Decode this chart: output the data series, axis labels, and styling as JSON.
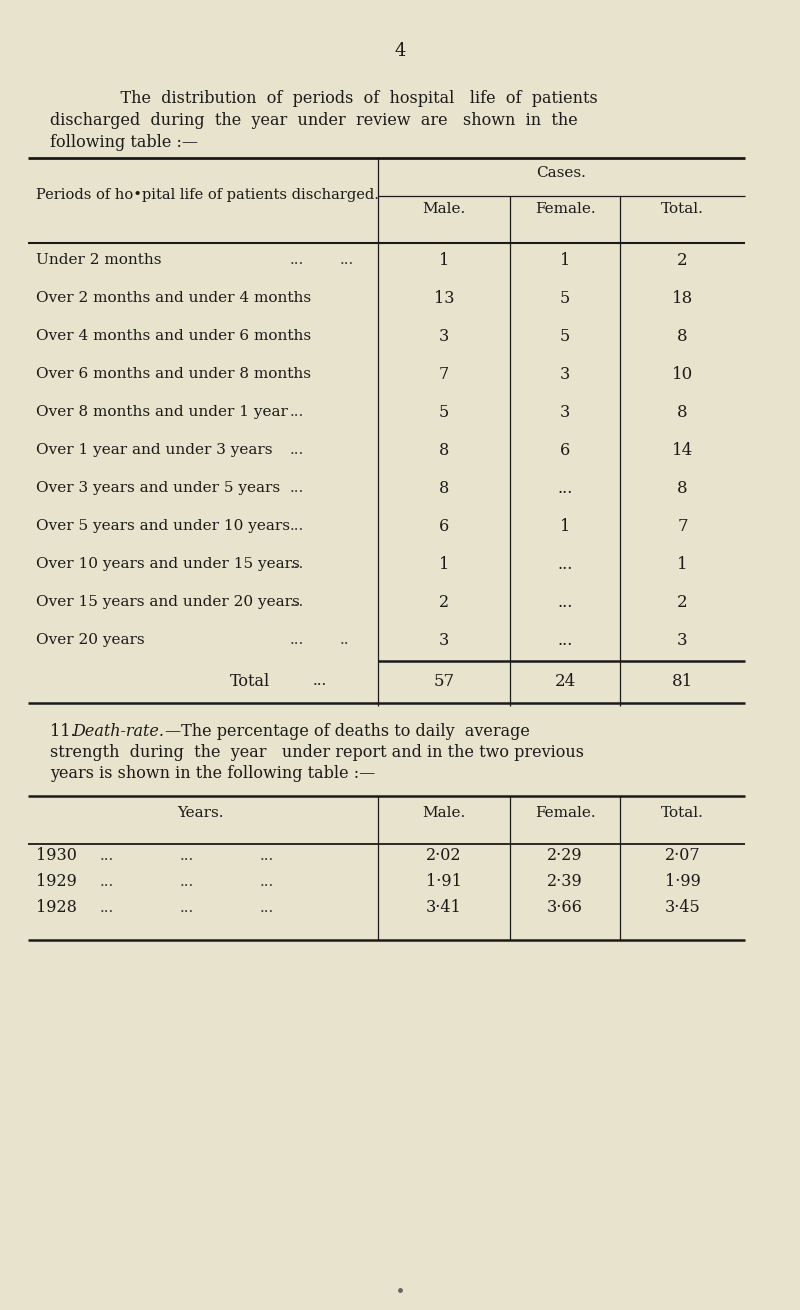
{
  "bg_color": "#e8e3cc",
  "page_number": "4",
  "intro_line1": "    The  distribution  of  periods  of  hospital   life  of  patients",
  "intro_line2": "discharged  during  the  year  under  review  are   shown  in  the",
  "intro_line3": "following table :—",
  "table1_header_left": "Periods of ho•pital life of patients discharged.",
  "table1_header_cases": "Cases.",
  "table1_col_headers": [
    "Male.",
    "Female.",
    "Total."
  ],
  "table1_rows": [
    [
      "Under 2 months",
      "...",
      "...",
      "1",
      "1",
      "2"
    ],
    [
      "Over 2 months and under 4 months",
      "...",
      "",
      "13",
      "5",
      "18"
    ],
    [
      "Over 4 months and under 6 months",
      "...",
      "",
      "3",
      "5",
      "8"
    ],
    [
      "Over 6 months and under 8 months",
      "...",
      "",
      "7",
      "3",
      "10"
    ],
    [
      "Over 8 months and under 1 year",
      "...",
      "",
      "5",
      "3",
      "8"
    ],
    [
      "Over 1 year and under 3 years",
      "...",
      "",
      "8",
      "6",
      "14"
    ],
    [
      "Over 3 years and under 5 years",
      "...",
      "",
      "8",
      "...",
      "8"
    ],
    [
      "Over 5 years and under 10 years",
      "...",
      "",
      "6",
      "1",
      "7"
    ],
    [
      "Over 10 years and under 15 years",
      "...",
      "",
      "1",
      "...",
      "1"
    ],
    [
      "Over 15 years and under 20 years",
      "...",
      "",
      "2",
      "...",
      "2"
    ],
    [
      "Over 20 years",
      "...",
      "..",
      "3",
      "...",
      "3"
    ]
  ],
  "table1_total_row": [
    "Total",
    "...",
    "57",
    "24",
    "81"
  ],
  "section11_bold": "11. ",
  "section11_italic": "Death-rate.",
  "section11_normal": "—The percentage of deaths to daily  average",
  "section11_line2": "strength  during  the  year   under report and in the two previous",
  "section11_line3": "years is shown in the following table :—",
  "table2_years_header": "Years.",
  "table2_col_headers": [
    "Male.",
    "Female.",
    "Total."
  ],
  "table2_rows": [
    [
      "1930",
      "...",
      "...",
      "...",
      "2·02",
      "2·29",
      "2·07"
    ],
    [
      "1929",
      "...",
      "...",
      "...",
      "1·91",
      "2·39",
      "1·99"
    ],
    [
      "1928",
      "...",
      "...",
      "...",
      "3·41",
      "3·66",
      "3·45"
    ]
  ],
  "text_color": "#1a1a1a",
  "line_color": "#1a1a1a",
  "dots_color": "#333333"
}
